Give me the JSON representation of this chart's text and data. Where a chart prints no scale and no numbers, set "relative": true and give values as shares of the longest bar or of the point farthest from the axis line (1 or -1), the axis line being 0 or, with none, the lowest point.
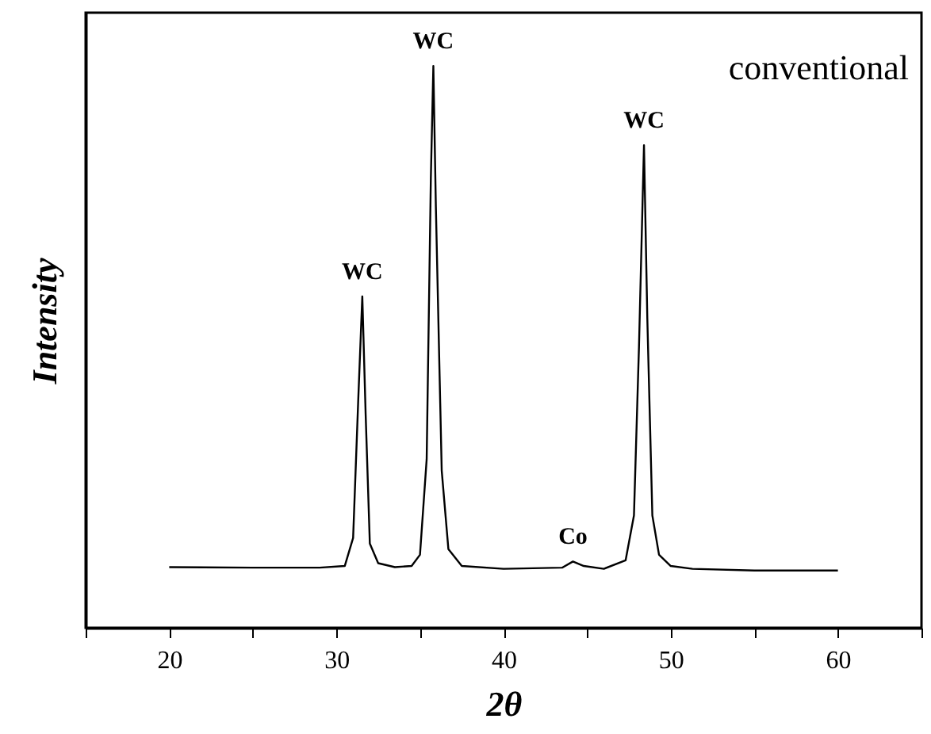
{
  "chart_data": {
    "type": "line",
    "relative": true,
    "xlabel": "2θ",
    "ylabel": "Intensity",
    "xlim": [
      15,
      65
    ],
    "xticks": [
      {
        "value": 15,
        "label": null
      },
      20,
      {
        "value": 25,
        "label": null
      },
      30,
      {
        "value": 35,
        "label": null
      },
      40,
      {
        "value": 45,
        "label": null
      },
      50,
      {
        "value": 55,
        "label": null
      },
      60,
      {
        "value": 65,
        "label": null
      }
    ],
    "x": [
      20,
      25,
      29,
      30.5,
      31.0,
      31.3,
      31.55,
      31.75,
      32.0,
      32.5,
      33.5,
      34.5,
      35.0,
      35.4,
      35.65,
      35.8,
      35.95,
      36.3,
      36.7,
      37.5,
      40,
      43.5,
      44.15,
      44.8,
      46,
      47.3,
      47.8,
      48.1,
      48.4,
      48.6,
      48.9,
      49.3,
      50,
      51.3,
      55,
      60
    ],
    "series": [
      {
        "color": "#000000",
        "values": [
          0.108,
          0.107,
          0.107,
          0.11,
          0.16,
          0.4,
          0.59,
          0.38,
          0.15,
          0.115,
          0.108,
          0.11,
          0.13,
          0.3,
          0.8,
          1.0,
          0.75,
          0.28,
          0.14,
          0.11,
          0.105,
          0.107,
          0.118,
          0.11,
          0.105,
          0.12,
          0.2,
          0.5,
          0.859,
          0.55,
          0.2,
          0.13,
          0.11,
          0.105,
          0.102,
          0.102
        ]
      }
    ],
    "grid": false,
    "marker": "none",
    "line_style": "solid",
    "annotations": [
      {
        "text": "WC",
        "x": 31.55,
        "y": 0.59
      },
      {
        "text": "WC",
        "x": 35.8,
        "y": 1.0
      },
      {
        "text": "Co",
        "x": 44.15,
        "y": 0.118
      },
      {
        "text": "WC",
        "x": 48.4,
        "y": 0.859
      },
      "conventional"
    ]
  }
}
